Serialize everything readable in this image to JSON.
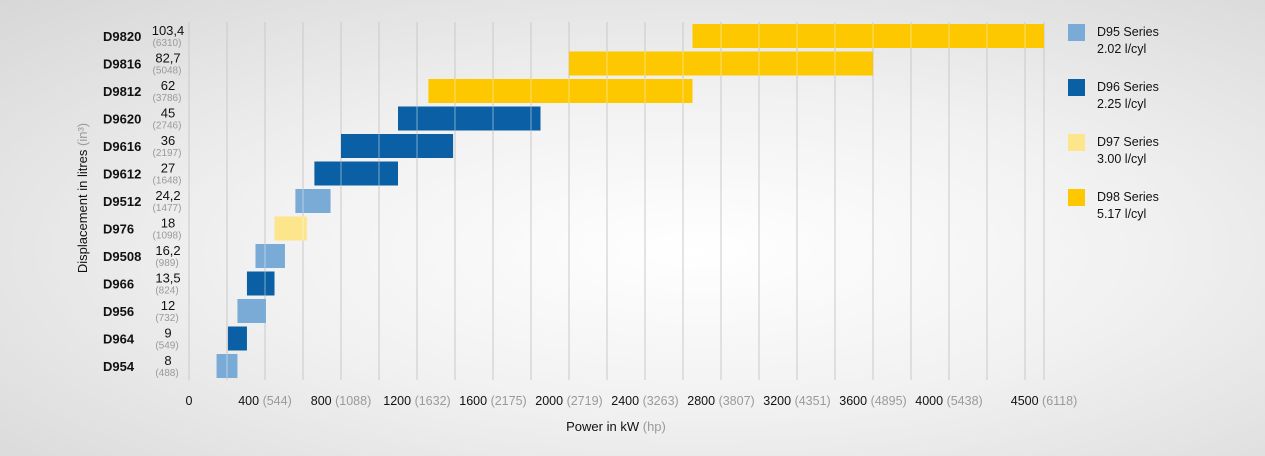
{
  "chart_data": {
    "type": "bar",
    "orientation": "horizontal-range",
    "xlabel": "Power in kW",
    "xlabel_unit": "(hp)",
    "ylabel": "Displacement in litres",
    "ylabel_unit": "(in³)",
    "xlim": [
      0,
      4650
    ],
    "x_ticks": [
      {
        "kw": "0",
        "hp": ""
      },
      {
        "kw": "400",
        "hp": "(544)"
      },
      {
        "kw": "800",
        "hp": "(1088)"
      },
      {
        "kw": "1200",
        "hp": "(1632)"
      },
      {
        "kw": "1600",
        "hp": "(2175)"
      },
      {
        "kw": "2000",
        "hp": "(2719)"
      },
      {
        "kw": "2400",
        "hp": "(3263)"
      },
      {
        "kw": "2800",
        "hp": "(3807)"
      },
      {
        "kw": "3200",
        "hp": "(4351)"
      },
      {
        "kw": "3600",
        "hp": "(4895)"
      },
      {
        "kw": "4000",
        "hp": "(5438)"
      },
      {
        "kw": "4500",
        "hp": "(6118)"
      }
    ],
    "grid": true,
    "series": [
      {
        "name": "D95 Series",
        "sub": "2.02 l/cyl",
        "color": "#7aaad6"
      },
      {
        "name": "D96 Series",
        "sub": "2.25 l/cyl",
        "color": "#0b5fa4"
      },
      {
        "name": "D97 Series",
        "sub": "3.00 l/cyl",
        "color": "#fce58a"
      },
      {
        "name": "D98 Series",
        "sub": "5.17 l/cyl",
        "color": "#fdc800"
      }
    ],
    "engines": [
      {
        "model": "D9820",
        "litres": "103,4",
        "cubic_inches": "(6310)",
        "series": 3,
        "kw_min": 2650,
        "kw_max": 4500
      },
      {
        "model": "D9816",
        "litres": "82,7",
        "cubic_inches": "(5048)",
        "series": 3,
        "kw_min": 2000,
        "kw_max": 3600
      },
      {
        "model": "D9812",
        "litres": "62",
        "cubic_inches": "(3786)",
        "series": 3,
        "kw_min": 1260,
        "kw_max": 2650
      },
      {
        "model": "D9620",
        "litres": "45",
        "cubic_inches": "(2746)",
        "series": 1,
        "kw_min": 1100,
        "kw_max": 1850
      },
      {
        "model": "D9616",
        "litres": "36",
        "cubic_inches": "(2197)",
        "series": 1,
        "kw_min": 800,
        "kw_max": 1390
      },
      {
        "model": "D9612",
        "litres": "27",
        "cubic_inches": "(1648)",
        "series": 1,
        "kw_min": 660,
        "kw_max": 1100
      },
      {
        "model": "D9512",
        "litres": "24,2",
        "cubic_inches": "(1477)",
        "series": 0,
        "kw_min": 560,
        "kw_max": 745
      },
      {
        "model": "D976",
        "litres": "18",
        "cubic_inches": "(1098)",
        "series": 2,
        "kw_min": 450,
        "kw_max": 620
      },
      {
        "model": "D9508",
        "litres": "16,2",
        "cubic_inches": "(989)",
        "series": 0,
        "kw_min": 350,
        "kw_max": 505
      },
      {
        "model": "D966",
        "litres": "13,5",
        "cubic_inches": "(824)",
        "series": 1,
        "kw_min": 305,
        "kw_max": 450
      },
      {
        "model": "D956",
        "litres": "12",
        "cubic_inches": "(732)",
        "series": 0,
        "kw_min": 255,
        "kw_max": 405
      },
      {
        "model": "D964",
        "litres": "9",
        "cubic_inches": "(549)",
        "series": 1,
        "kw_min": 205,
        "kw_max": 305
      },
      {
        "model": "D954",
        "litres": "8",
        "cubic_inches": "(488)",
        "series": 0,
        "kw_min": 145,
        "kw_max": 255
      }
    ]
  }
}
